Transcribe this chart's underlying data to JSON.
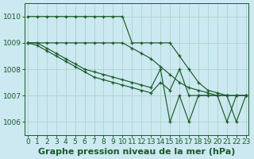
{
  "bg_color": "#cce8f0",
  "grid_color": "#aad4cc",
  "line_color": "#1a5c2a",
  "title": "Graphe pression niveau de la mer (hPa)",
  "xlim": [
    -0.3,
    23.3
  ],
  "ylim": [
    1005.5,
    1010.5
  ],
  "yticks": [
    1006,
    1007,
    1008,
    1009,
    1010
  ],
  "xticks": [
    0,
    1,
    2,
    3,
    4,
    5,
    6,
    7,
    8,
    9,
    10,
    11,
    12,
    13,
    14,
    15,
    16,
    17,
    18,
    19,
    20,
    21,
    22,
    23
  ],
  "series": [
    [
      1010.0,
      1010.0,
      1010.0,
      1010.0,
      1010.0,
      1010.0,
      1010.0,
      1010.0,
      1010.0,
      1010.0,
      1010.0,
      1009.0,
      1009.0,
      1009.0,
      1009.0,
      1009.0,
      1008.5,
      1008.0,
      1007.5,
      1007.2,
      1007.1,
      1007.0,
      1007.0,
      1007.0
    ],
    [
      1009.0,
      1009.0,
      1009.0,
      1009.0,
      1009.0,
      1009.0,
      1009.0,
      1009.0,
      1009.0,
      1009.0,
      1009.0,
      1008.8,
      1008.6,
      1008.4,
      1008.1,
      1007.8,
      1007.5,
      1007.3,
      1007.2,
      1007.1,
      1007.0,
      1007.0,
      1007.0,
      1007.0
    ],
    [
      1009.0,
      1009.0,
      1008.8,
      1008.6,
      1008.4,
      1008.2,
      1008.0,
      1007.9,
      1007.8,
      1007.7,
      1007.6,
      1007.5,
      1007.4,
      1007.3,
      1008.0,
      1006.0,
      1007.0,
      1006.0,
      1007.0,
      1007.0,
      1007.0,
      1006.0,
      1007.0,
      1007.0
    ],
    [
      1009.0,
      1008.9,
      1008.7,
      1008.5,
      1008.3,
      1008.1,
      1007.9,
      1007.7,
      1007.6,
      1007.5,
      1007.4,
      1007.3,
      1007.2,
      1007.1,
      1007.5,
      1007.2,
      1008.0,
      1007.0,
      1007.0,
      1007.0,
      1007.0,
      1007.0,
      1006.0,
      1007.0
    ]
  ],
  "title_fontsize": 8,
  "tick_fontsize": 6.5
}
